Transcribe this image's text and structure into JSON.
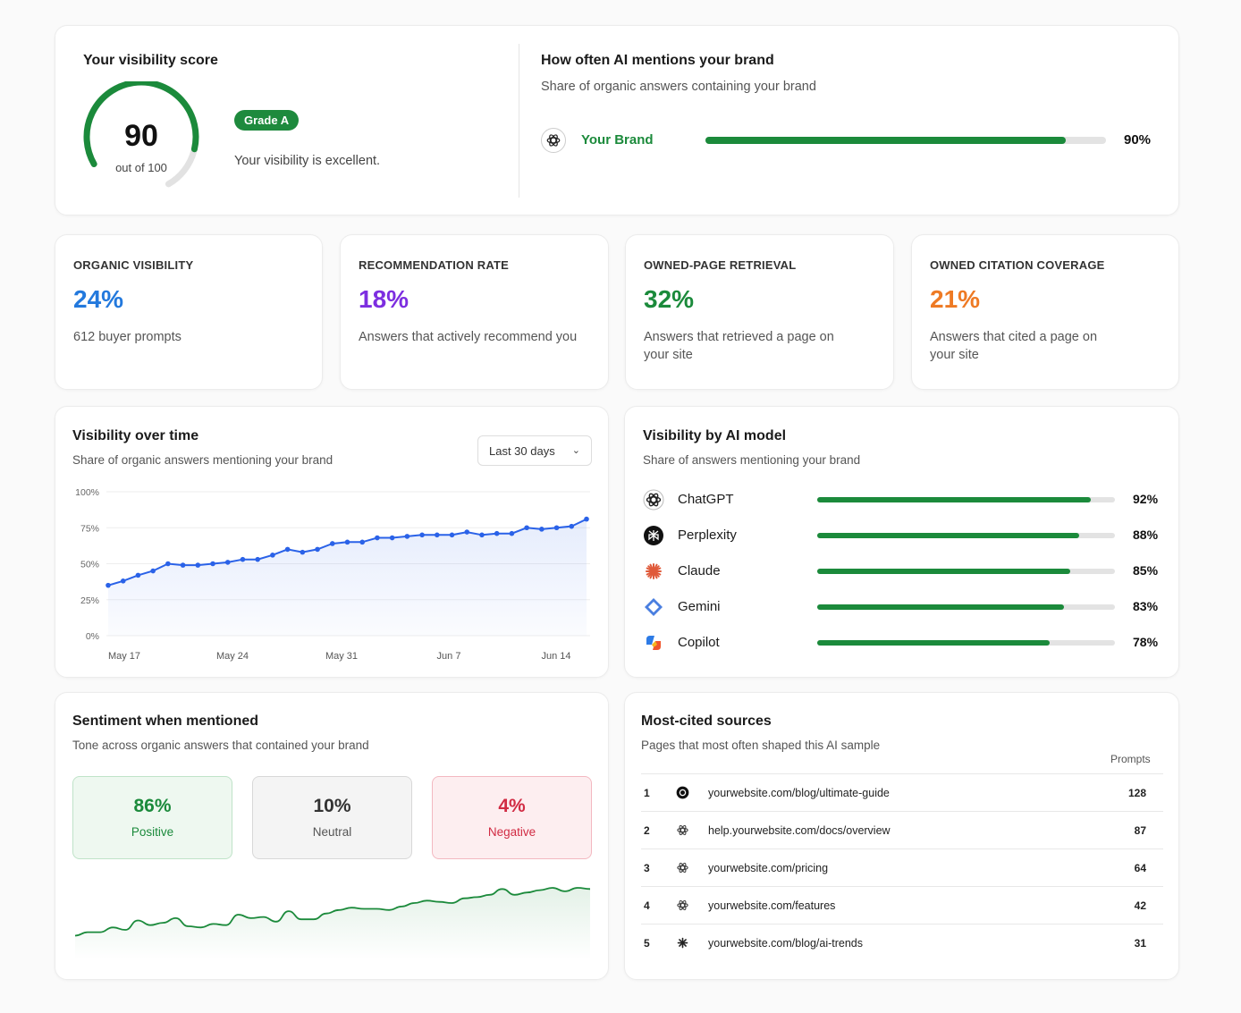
{
  "score": {
    "title": "Your visibility score",
    "value": 90,
    "value_text": "90",
    "out_of": "out of 100",
    "grade": "Grade A",
    "description": "Your visibility is excellent."
  },
  "mentions": {
    "title": "How often AI mentions your brand",
    "subtitle": "Share of organic answers containing your brand",
    "brand_label": "Your Brand",
    "brand_icon": "chatgpt-icon",
    "value": 90,
    "value_text": "90%"
  },
  "metrics": [
    {
      "label": "ORGANIC VISIBILITY",
      "value": "24%",
      "desc": "612 buyer prompts",
      "color": "#2379dd"
    },
    {
      "label": "RECOMMENDATION RATE",
      "value": "18%",
      "desc": "Answers that actively recommend you",
      "color": "#7d2ee0"
    },
    {
      "label": "OWNED-PAGE RETRIEVAL",
      "value": "32%",
      "desc": "Answers that retrieved a page on your site",
      "color": "#1b8a3b"
    },
    {
      "label": "OWNED CITATION COVERAGE",
      "value": "21%",
      "desc": "Answers that cited a page on your site",
      "color": "#ee7a24"
    }
  ],
  "visibility_over_time": {
    "title": "Visibility over time",
    "subtitle": "Share of organic answers mentioning your brand",
    "range": "Last 30 days"
  },
  "chart_data": {
    "type": "area",
    "title": "Visibility over time",
    "subtitle": "Share of organic answers mentioning your brand",
    "xlabel": "",
    "ylabel": "",
    "y_ticks": [
      "100%",
      "75%",
      "50%",
      "25%",
      "0%"
    ],
    "x_ticks": [
      "May 17",
      "May 24",
      "May 31",
      "Jun 7",
      "Jun 14"
    ],
    "ylim": [
      0,
      100
    ],
    "values": [
      35,
      38,
      42,
      45,
      50,
      49,
      49,
      50,
      51,
      53,
      53,
      56,
      60,
      58,
      60,
      64,
      65,
      65,
      68,
      68,
      69,
      70,
      70,
      70,
      72,
      70,
      71,
      71,
      75,
      74,
      75,
      76,
      81
    ],
    "color": "#2a62e8",
    "grid": true
  },
  "models": {
    "title": "Visibility by AI model",
    "subtitle": "Share of answers mentioning your brand",
    "items": [
      {
        "name": "ChatGPT",
        "value": 92,
        "value_text": "92%",
        "icon": "chatgpt-icon"
      },
      {
        "name": "Perplexity",
        "value": 88,
        "value_text": "88%",
        "icon": "perplexity-icon"
      },
      {
        "name": "Claude",
        "value": 85,
        "value_text": "85%",
        "icon": "claude-icon"
      },
      {
        "name": "Gemini",
        "value": 83,
        "value_text": "83%",
        "icon": "gemini-icon"
      },
      {
        "name": "Copilot",
        "value": 78,
        "value_text": "78%",
        "icon": "copilot-icon"
      }
    ]
  },
  "sentiment": {
    "title": "Sentiment when mentioned",
    "subtitle": "Tone across organic answers that contained your brand",
    "positive": {
      "value": "86%",
      "label": "Positive"
    },
    "neutral": {
      "value": "10%",
      "label": "Neutral"
    },
    "negative": {
      "value": "4%",
      "label": "Negative"
    },
    "trend_values": [
      5,
      8,
      8,
      12,
      10,
      18,
      14,
      16,
      20,
      13,
      12,
      15,
      14,
      23,
      20,
      21,
      17,
      26,
      19,
      19,
      24,
      27,
      29,
      28,
      28,
      27,
      30,
      33,
      35,
      34,
      33,
      37,
      38,
      40,
      45,
      40,
      42,
      44,
      46,
      43,
      46,
      45
    ]
  },
  "cited": {
    "title": "Most-cited sources",
    "subtitle": "Pages that most often shaped this AI sample",
    "column": "Prompts",
    "rows": [
      {
        "rank": "1",
        "url": "yourwebsite.com/blog/ultimate-guide",
        "count": "128",
        "icon": "perplexity-icon"
      },
      {
        "rank": "2",
        "url": "help.yourwebsite.com/docs/overview",
        "count": "87",
        "icon": "chatgpt-icon"
      },
      {
        "rank": "3",
        "url": "yourwebsite.com/pricing",
        "count": "64",
        "icon": "chatgpt-icon"
      },
      {
        "rank": "4",
        "url": "yourwebsite.com/features",
        "count": "42",
        "icon": "chatgpt-icon"
      },
      {
        "rank": "5",
        "url": "yourwebsite.com/blog/ai-trends",
        "count": "31",
        "icon": "claude-icon"
      }
    ]
  }
}
